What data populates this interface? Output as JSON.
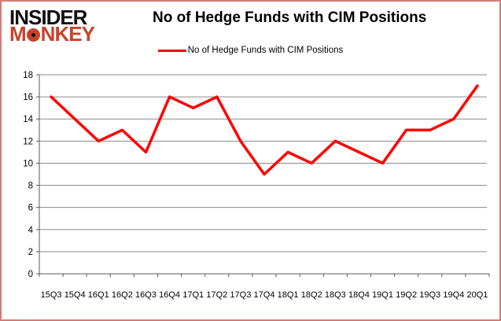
{
  "header": {
    "logo": {
      "line1": "INSIDER",
      "line2_m": "M",
      "line2_rest": "NKEY"
    },
    "title": "No of Hedge Funds with CIM Positions"
  },
  "legend": {
    "label": "No of Hedge Funds with CIM Positions"
  },
  "colors": {
    "line": "#ff0000",
    "grid": "#8a8a8a",
    "axis": "#595959",
    "text": "#000000",
    "logo_red": "#c7432c",
    "frame_border": "#d27c76"
  },
  "chart_data": {
    "type": "line",
    "title": "No of Hedge Funds with CIM Positions",
    "categories": [
      "15Q3",
      "15Q4",
      "16Q1",
      "16Q2",
      "16Q3",
      "16Q4",
      "17Q1",
      "17Q2",
      "17Q3",
      "17Q4",
      "18Q1",
      "18Q2",
      "18Q3",
      "18Q4",
      "19Q1",
      "19Q2",
      "19Q3",
      "19Q4",
      "20Q1"
    ],
    "series": [
      {
        "name": "No of Hedge Funds with CIM Positions",
        "values": [
          16,
          14,
          12,
          13,
          11,
          16,
          15,
          16,
          12,
          9,
          11,
          10,
          12,
          11,
          10,
          13,
          13,
          14,
          17
        ]
      }
    ],
    "xlabel": "",
    "ylabel": "",
    "ylim": [
      0,
      18
    ],
    "ytick_step": 2,
    "grid": true,
    "legend_position": "top"
  }
}
